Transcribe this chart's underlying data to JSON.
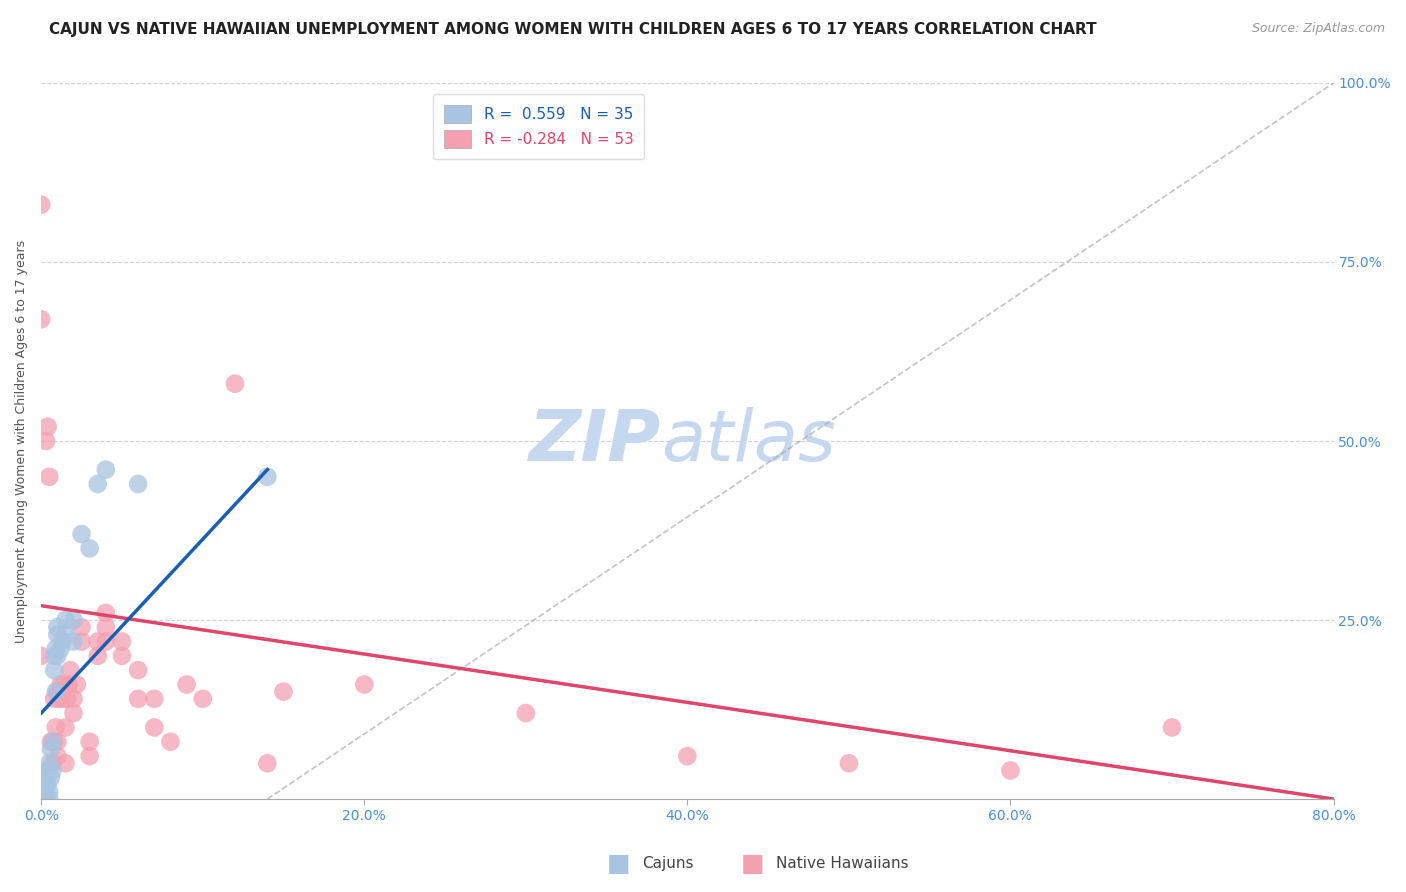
{
  "title": "CAJUN VS NATIVE HAWAIIAN UNEMPLOYMENT AMONG WOMEN WITH CHILDREN AGES 6 TO 17 YEARS CORRELATION CHART",
  "source": "Source: ZipAtlas.com",
  "ylabel": "Unemployment Among Women with Children Ages 6 to 17 years",
  "xlim": [
    0.0,
    0.8
  ],
  "ylim": [
    0.0,
    1.0
  ],
  "xticks": [
    0.0,
    0.2,
    0.4,
    0.6,
    0.8
  ],
  "yticks": [
    0.0,
    0.25,
    0.5,
    0.75,
    1.0
  ],
  "xticklabels": [
    "0.0%",
    "20.0%",
    "40.0%",
    "60.0%",
    "80.0%"
  ],
  "yticklabels_right": [
    "",
    "25.0%",
    "50.0%",
    "75.0%",
    "100.0%"
  ],
  "cajun_R": 0.559,
  "cajun_N": 35,
  "native_R": -0.284,
  "native_N": 53,
  "cajun_color": "#a8c4e0",
  "native_color": "#f4a0b0",
  "cajun_trend_color": "#1a5fb4",
  "native_trend_color": "#e0456a",
  "ref_line_color": "#aaaaaa",
  "background_color": "#ffffff",
  "grid_color": "#cccccc",
  "legend_label_cajun": "Cajuns",
  "legend_label_native": "Native Hawaiians",
  "title_color": "#222222",
  "axis_tick_color": "#4a90d9",
  "cajun_scatter_x": [
    0.0,
    0.0,
    0.0,
    0.0,
    0.003,
    0.003,
    0.003,
    0.004,
    0.004,
    0.005,
    0.005,
    0.005,
    0.006,
    0.006,
    0.007,
    0.007,
    0.008,
    0.008,
    0.009,
    0.009,
    0.01,
    0.01,
    0.01,
    0.012,
    0.013,
    0.015,
    0.015,
    0.02,
    0.02,
    0.025,
    0.03,
    0.035,
    0.04,
    0.06,
    0.14
  ],
  "cajun_scatter_y": [
    0.0,
    0.01,
    0.02,
    0.03,
    0.0,
    0.01,
    0.03,
    0.02,
    0.04,
    0.0,
    0.01,
    0.05,
    0.03,
    0.07,
    0.04,
    0.08,
    0.18,
    0.2,
    0.15,
    0.21,
    0.23,
    0.24,
    0.2,
    0.21,
    0.22,
    0.23,
    0.25,
    0.22,
    0.25,
    0.37,
    0.35,
    0.44,
    0.46,
    0.44,
    0.45
  ],
  "native_scatter_x": [
    0.0,
    0.0,
    0.0,
    0.003,
    0.004,
    0.005,
    0.006,
    0.007,
    0.008,
    0.008,
    0.009,
    0.01,
    0.01,
    0.01,
    0.011,
    0.012,
    0.013,
    0.014,
    0.015,
    0.015,
    0.016,
    0.017,
    0.018,
    0.02,
    0.02,
    0.022,
    0.025,
    0.025,
    0.03,
    0.03,
    0.035,
    0.035,
    0.04,
    0.04,
    0.04,
    0.05,
    0.05,
    0.06,
    0.06,
    0.07,
    0.07,
    0.08,
    0.09,
    0.1,
    0.12,
    0.14,
    0.15,
    0.2,
    0.3,
    0.4,
    0.5,
    0.6,
    0.7
  ],
  "native_scatter_y": [
    0.83,
    0.67,
    0.2,
    0.5,
    0.52,
    0.45,
    0.08,
    0.05,
    0.08,
    0.14,
    0.1,
    0.06,
    0.08,
    0.15,
    0.14,
    0.16,
    0.14,
    0.16,
    0.05,
    0.1,
    0.14,
    0.16,
    0.18,
    0.12,
    0.14,
    0.16,
    0.22,
    0.24,
    0.06,
    0.08,
    0.2,
    0.22,
    0.22,
    0.24,
    0.26,
    0.2,
    0.22,
    0.14,
    0.18,
    0.1,
    0.14,
    0.08,
    0.16,
    0.14,
    0.58,
    0.05,
    0.15,
    0.16,
    0.12,
    0.06,
    0.05,
    0.04,
    0.1
  ],
  "cajun_trend_x0": 0.0,
  "cajun_trend_y0": 0.12,
  "cajun_trend_x1": 0.14,
  "cajun_trend_y1": 0.46,
  "native_trend_x0": 0.0,
  "native_trend_y0": 0.27,
  "native_trend_x1": 0.8,
  "native_trend_y1": 0.0,
  "ref_line_x0": 0.14,
  "ref_line_y0": 0.0,
  "ref_line_x1": 0.8,
  "ref_line_y1": 1.0,
  "watermark_zip": "ZIP",
  "watermark_atlas": "atlas",
  "watermark_zip_color": "#c5d8f0",
  "watermark_atlas_color": "#c5d8f0",
  "title_fontsize": 11,
  "source_fontsize": 9,
  "axis_label_fontsize": 9,
  "tick_fontsize": 10,
  "legend_fontsize": 11,
  "marker_size": 180
}
